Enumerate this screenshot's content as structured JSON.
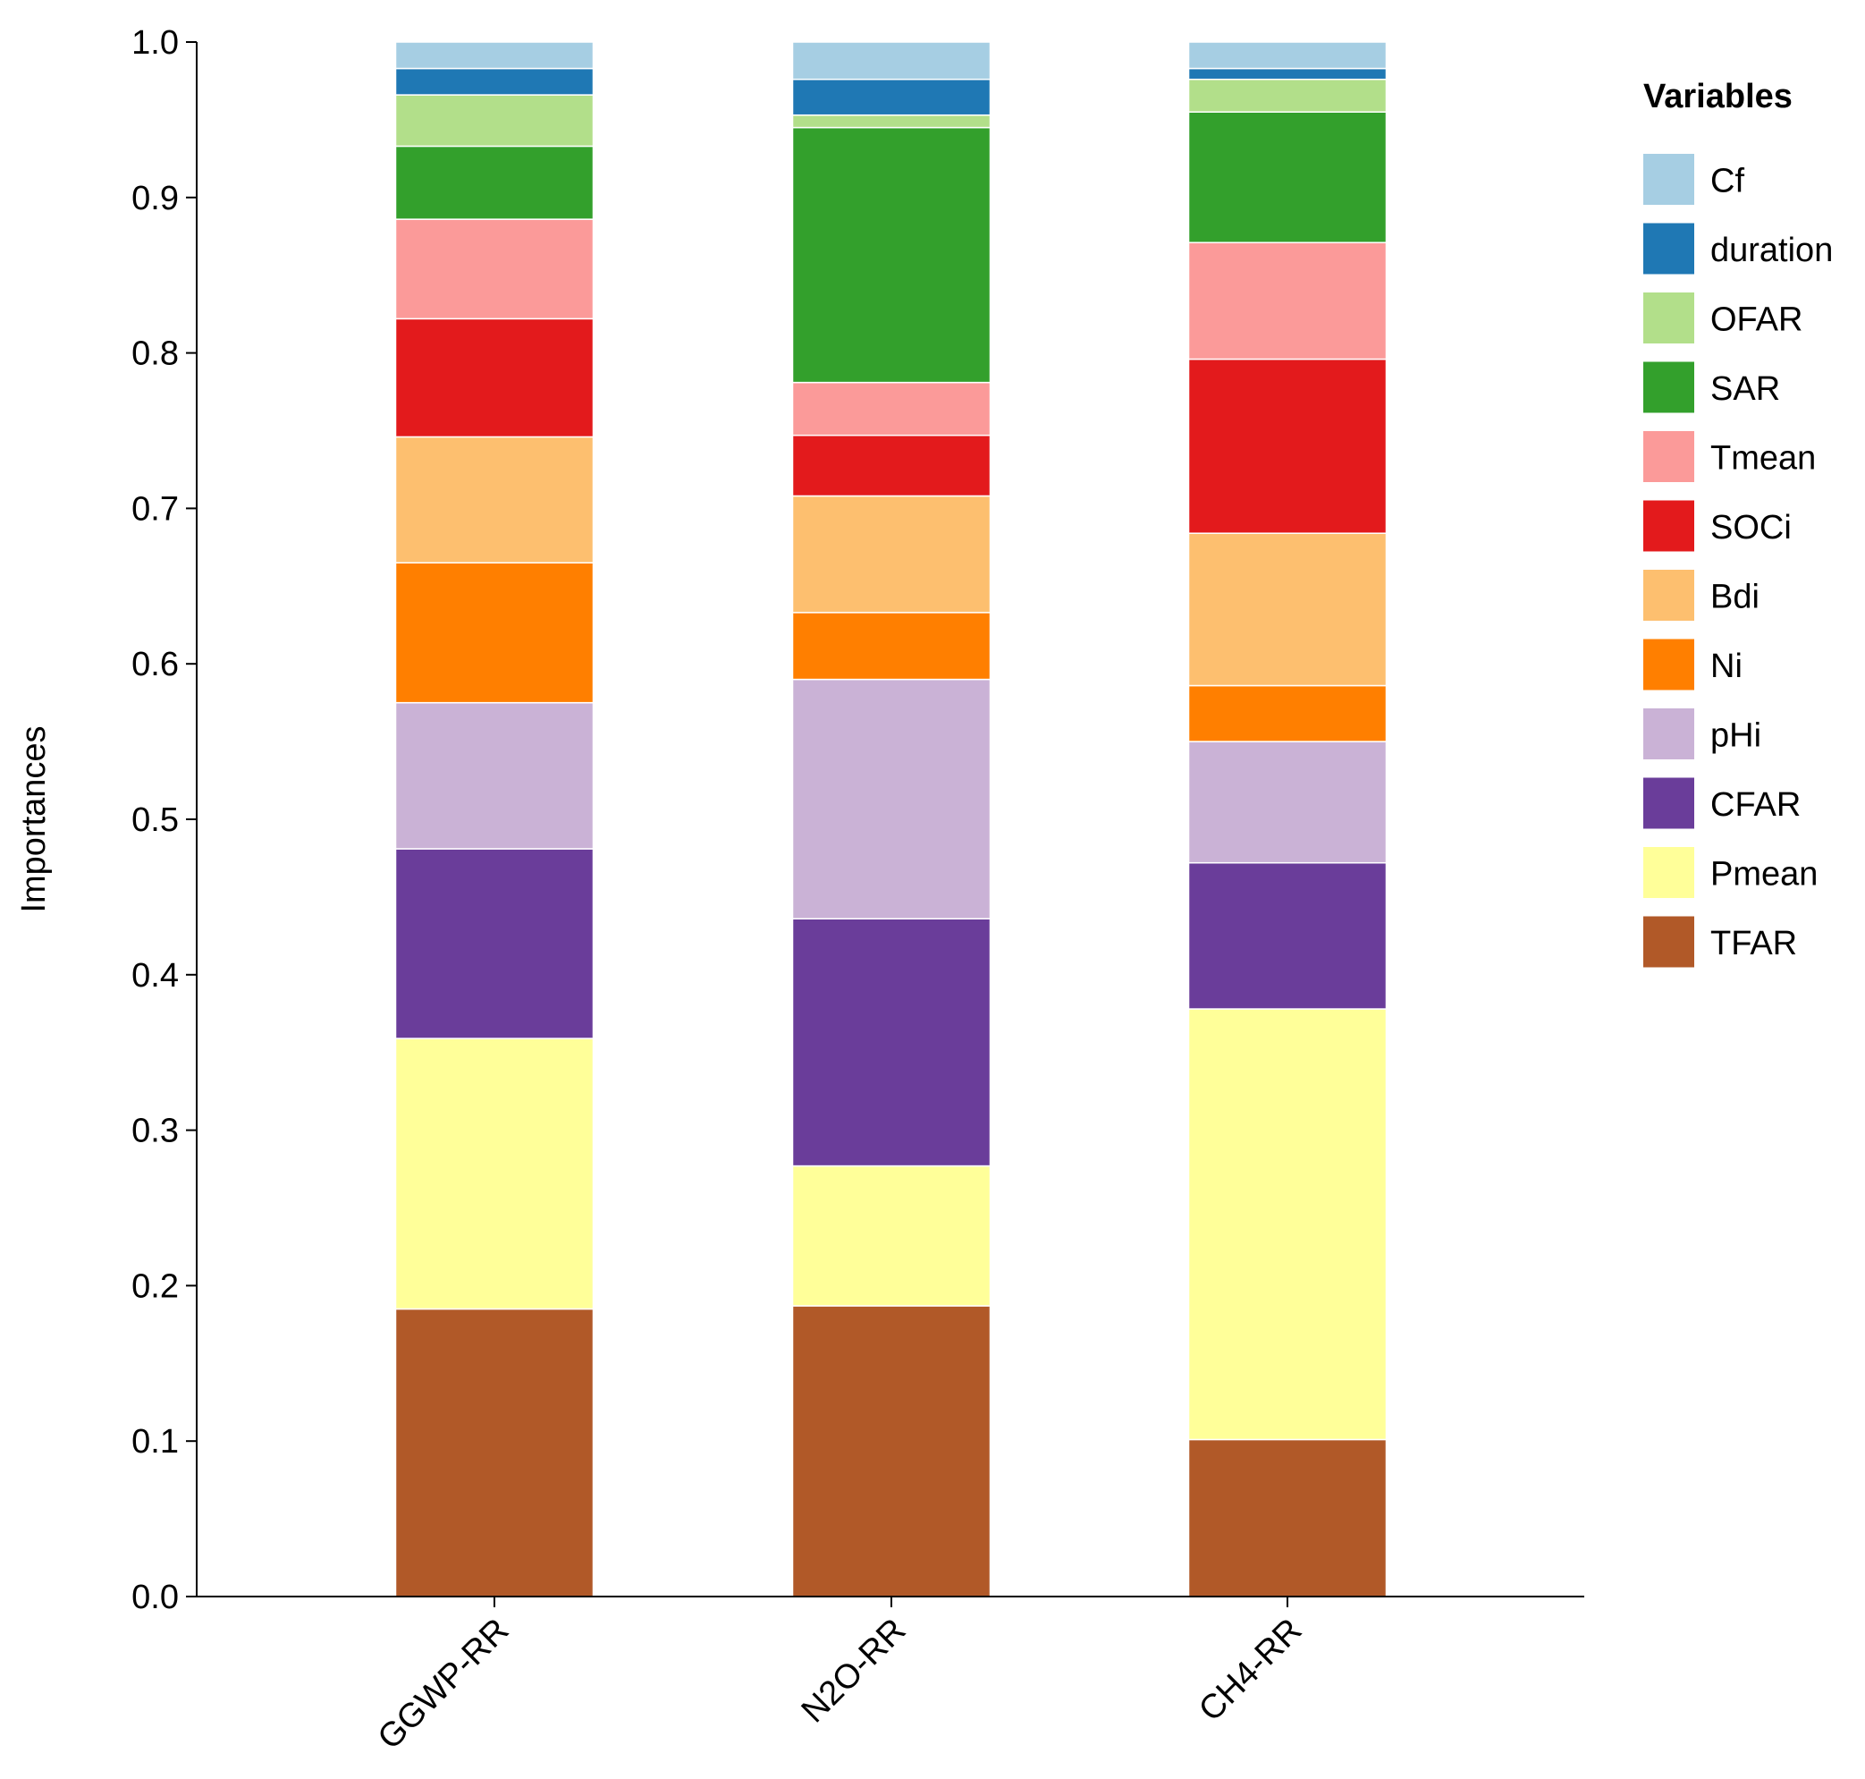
{
  "chart_data": {
    "type": "bar",
    "stacked": true,
    "title": "",
    "xlabel": "",
    "ylabel": "Importances",
    "ylim": [
      0,
      1.0
    ],
    "yticks": [
      "0.0",
      "0.1",
      "0.2",
      "0.3",
      "0.4",
      "0.5",
      "0.6",
      "0.7",
      "0.8",
      "0.9",
      "1.0"
    ],
    "categories": [
      "GGWP-RR",
      "N2O-RR",
      "CH4-RR"
    ],
    "legend_title": "Variables",
    "legend_position": "right",
    "series": [
      {
        "name": "TFAR",
        "color": "#b15928",
        "values": [
          0.185,
          0.187,
          0.101
        ]
      },
      {
        "name": "Pmean",
        "color": "#ffff99",
        "values": [
          0.174,
          0.09,
          0.277
        ]
      },
      {
        "name": "CFAR",
        "color": "#6a3d9a",
        "values": [
          0.122,
          0.159,
          0.094
        ]
      },
      {
        "name": "pHi",
        "color": "#cab2d6",
        "values": [
          0.094,
          0.154,
          0.078
        ]
      },
      {
        "name": "Ni",
        "color": "#ff7f00",
        "values": [
          0.09,
          0.043,
          0.036
        ]
      },
      {
        "name": "Bdi",
        "color": "#fdbf6f",
        "values": [
          0.081,
          0.075,
          0.098
        ]
      },
      {
        "name": "SOCi",
        "color": "#e31a1c",
        "values": [
          0.076,
          0.039,
          0.112
        ]
      },
      {
        "name": "Tmean",
        "color": "#fb9a99",
        "values": [
          0.064,
          0.034,
          0.075
        ]
      },
      {
        "name": "SAR",
        "color": "#33a02c",
        "values": [
          0.047,
          0.164,
          0.084
        ]
      },
      {
        "name": "OFAR",
        "color": "#b2df8a",
        "values": [
          0.033,
          0.008,
          0.021
        ]
      },
      {
        "name": "duration",
        "color": "#1f78b4",
        "values": [
          0.017,
          0.023,
          0.007
        ]
      },
      {
        "name": "Cf",
        "color": "#a6cee3",
        "values": [
          0.017,
          0.024,
          0.017
        ]
      }
    ],
    "legend_order": [
      "Cf",
      "duration",
      "OFAR",
      "SAR",
      "Tmean",
      "SOCi",
      "Bdi",
      "Ni",
      "pHi",
      "CFAR",
      "Pmean",
      "TFAR"
    ]
  }
}
